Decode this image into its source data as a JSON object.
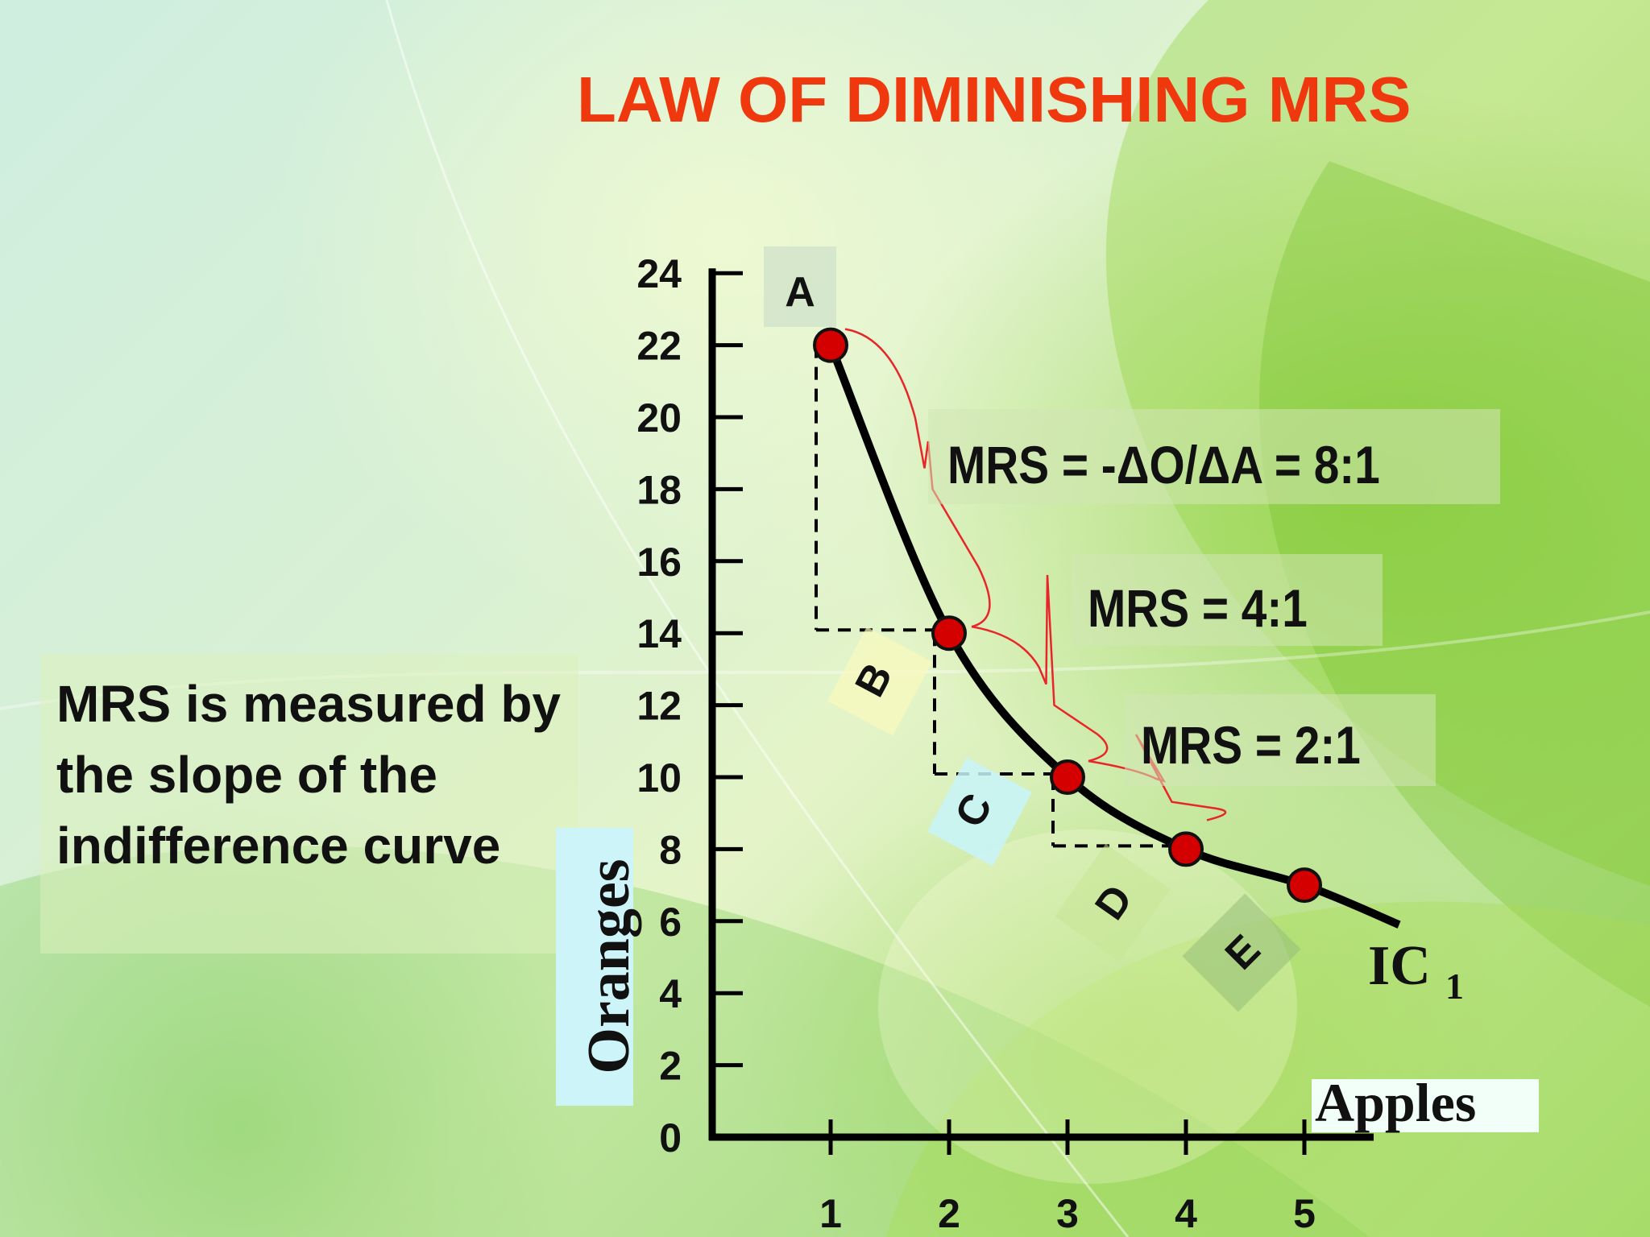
{
  "title": "LAW OF DIMINISHING MRS",
  "note": "MRS is measured by the slope of the indifference curve",
  "colors": {
    "title": "#f0380f",
    "point": "#d40000",
    "brace": "#e8262a",
    "curve": "#000000"
  },
  "chart_data": {
    "type": "line",
    "xlabel": "Apples",
    "ylabel": "Oranges",
    "xlim": [
      0,
      5.8
    ],
    "ylim": [
      0,
      24
    ],
    "x_ticks": [
      1,
      2,
      3,
      4,
      5
    ],
    "y_ticks": [
      0,
      2,
      4,
      6,
      8,
      10,
      12,
      14,
      16,
      18,
      20,
      22,
      24
    ],
    "grid": false,
    "curve_label": "IC",
    "curve_label_subscript": "1",
    "points": [
      {
        "label": "A",
        "x": 1,
        "y": 22
      },
      {
        "label": "B",
        "x": 2,
        "y": 14
      },
      {
        "label": "C",
        "x": 3,
        "y": 10
      },
      {
        "label": "D",
        "x": 4,
        "y": 8
      },
      {
        "label": "E",
        "x": 5,
        "y": 7
      }
    ],
    "curve_end": {
      "x": 5.8,
      "y": 5.9
    },
    "annotations": [
      {
        "text": "MRS = -ΔO/ΔA = 8:1",
        "from": "A",
        "to": "B"
      },
      {
        "text": "MRS = 4:1",
        "from": "B",
        "to": "C"
      },
      {
        "text": "MRS = 2:1",
        "from": "C",
        "to": "D"
      }
    ]
  }
}
